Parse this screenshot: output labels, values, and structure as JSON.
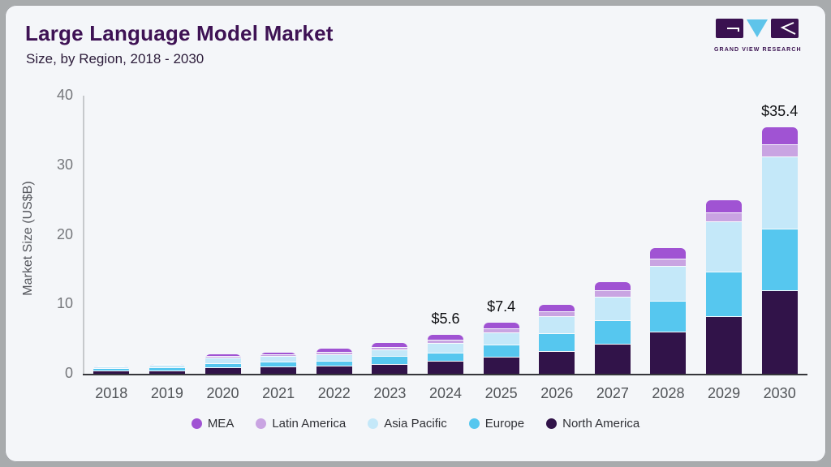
{
  "header": {
    "title": "Large Language Model Market",
    "subtitle": "Size, by Region, 2018 - 2030"
  },
  "logo": {
    "text": "GRAND VIEW RESEARCH",
    "mark_colors": {
      "square": "#3a1150",
      "triangle": "#5ec4ea"
    }
  },
  "chart_data": {
    "type": "bar",
    "stacked": true,
    "title": "Large Language Model Market Size, by Region, 2018 - 2030",
    "xlabel": "",
    "ylabel": "Market Size (US$B)",
    "ylim": [
      0,
      40
    ],
    "yticks": [
      0,
      10,
      20,
      30,
      40
    ],
    "grid": false,
    "legend_position": "bottom",
    "categories": [
      "2018",
      "2019",
      "2020",
      "2021",
      "2022",
      "2023",
      "2024",
      "2025",
      "2026",
      "2027",
      "2028",
      "2029",
      "2030"
    ],
    "series": [
      {
        "name": "North America",
        "color": "#311349",
        "values": [
          0.38,
          0.45,
          0.8,
          0.95,
          1.1,
          1.3,
          1.75,
          2.3,
          3.2,
          4.2,
          5.9,
          8.2,
          11.9
        ]
      },
      {
        "name": "Europe",
        "color": "#56c7ef",
        "values": [
          0.4,
          0.45,
          0.6,
          0.65,
          0.7,
          1.1,
          1.2,
          1.8,
          2.5,
          3.4,
          4.5,
          6.4,
          8.8
        ]
      },
      {
        "name": "Asia Pacific",
        "color": "#c4e8f9",
        "values": [
          0.33,
          0.35,
          0.85,
          0.8,
          0.9,
          1.0,
          1.35,
          1.75,
          2.5,
          3.4,
          5.0,
          7.2,
          10.4
        ]
      },
      {
        "name": "Latin America",
        "color": "#c9a4e2",
        "values": [
          0.03,
          0.05,
          0.2,
          0.25,
          0.35,
          0.35,
          0.45,
          0.6,
          0.7,
          0.9,
          1.1,
          1.3,
          1.8
        ]
      },
      {
        "name": "MEA",
        "color": "#a053d3",
        "values": [
          0.04,
          0.05,
          0.3,
          0.35,
          0.55,
          0.7,
          0.85,
          0.95,
          1.0,
          1.3,
          1.6,
          1.9,
          2.5
        ]
      }
    ],
    "annotations": [
      {
        "category": "2024",
        "label": "$5.6"
      },
      {
        "category": "2025",
        "label": "$7.4"
      },
      {
        "category": "2030",
        "label": "$35.4"
      }
    ],
    "legend_order": [
      "MEA",
      "Latin America",
      "Asia Pacific",
      "Europe",
      "North America"
    ]
  }
}
